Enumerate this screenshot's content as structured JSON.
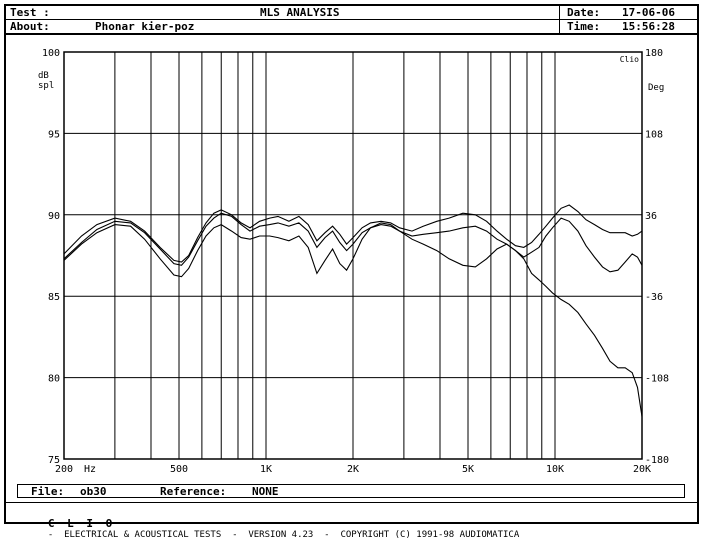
{
  "header": {
    "test_label": "Test :",
    "about_label": "About:",
    "about_value": "Phonar kier-poz",
    "title": "MLS ANALYSIS",
    "date_label": "Date:",
    "date_value": "17-06-06",
    "time_label": "Time:",
    "time_value": "15:56:28"
  },
  "footer": {
    "file_label": "File:",
    "file_value": "ob30",
    "reference_label": "Reference:",
    "reference_value": "NONE",
    "brand": "C L I O",
    "credits": "-  ELECTRICAL & ACOUSTICAL TESTS  -  VERSION 4.23  -  COPYRIGHT (C) 1991-98 AUDIOMATICA"
  },
  "chart_data": {
    "type": "line",
    "title": "MLS ANALYSIS",
    "xscale": "log",
    "xlim": [
      200,
      20000
    ],
    "ylim": [
      75,
      100
    ],
    "y2lim": [
      -180,
      180
    ],
    "ylabel": "dB spl",
    "y2label": "Deg",
    "xunit": "Hz",
    "corner_label": "Clio",
    "grid": true,
    "x_tick_labels": [
      {
        "value": 200,
        "label": "200"
      },
      {
        "value": 500,
        "label": "500"
      },
      {
        "value": 1000,
        "label": "1K"
      },
      {
        "value": 2000,
        "label": "2K"
      },
      {
        "value": 5000,
        "label": "5K"
      },
      {
        "value": 10000,
        "label": "10K"
      },
      {
        "value": 20000,
        "label": "20K"
      }
    ],
    "x_gridlines": [
      200,
      300,
      400,
      500,
      600,
      700,
      800,
      900,
      1000,
      2000,
      3000,
      4000,
      5000,
      6000,
      7000,
      8000,
      9000,
      10000,
      20000
    ],
    "y_ticks": [
      75,
      80,
      85,
      90,
      95,
      100
    ],
    "y2_ticks": [
      -180,
      -108,
      -36,
      36,
      108,
      180
    ],
    "series": [
      {
        "x": [
          200,
          230,
          260,
          300,
          340,
          380,
          430,
          480,
          510,
          540,
          580,
          620,
          660,
          700,
          760,
          820,
          880,
          950,
          1030,
          1100,
          1200,
          1300,
          1400,
          1500,
          1600,
          1700,
          1800,
          1900,
          2000,
          2150,
          2300,
          2500,
          2700,
          2900,
          3200,
          3500,
          3900,
          4300,
          4800,
          5300,
          5800,
          6300,
          6800,
          7300,
          7800,
          8300,
          8800,
          9300,
          9800,
          10500,
          11200,
          12000,
          12800,
          13700,
          14600,
          15500,
          16500,
          17500,
          18500,
          19300,
          20000
        ],
        "y": [
          87.3,
          88.3,
          89.1,
          89.6,
          89.5,
          88.9,
          87.9,
          87.0,
          86.9,
          87.4,
          88.4,
          89.3,
          89.8,
          90.1,
          89.9,
          89.4,
          89.0,
          89.3,
          89.4,
          89.5,
          89.3,
          89.5,
          89.0,
          88.0,
          88.6,
          89.0,
          88.3,
          87.8,
          88.2,
          88.9,
          89.2,
          89.4,
          89.3,
          89.0,
          88.7,
          88.8,
          88.9,
          89.0,
          89.2,
          89.3,
          89.0,
          88.5,
          88.2,
          87.8,
          87.3,
          86.4,
          86.0,
          85.6,
          85.2,
          84.8,
          84.5,
          84.0,
          83.3,
          82.6,
          81.8,
          81.0,
          80.6,
          80.6,
          80.3,
          79.4,
          77.6
        ]
      },
      {
        "x": [
          200,
          230,
          260,
          300,
          340,
          380,
          430,
          480,
          510,
          540,
          580,
          620,
          660,
          700,
          760,
          820,
          880,
          950,
          1030,
          1100,
          1200,
          1300,
          1400,
          1500,
          1600,
          1700,
          1800,
          1900,
          2000,
          2150,
          2300,
          2500,
          2700,
          2900,
          3200,
          3500,
          3900,
          4300,
          4800,
          5300,
          5800,
          6300,
          6800,
          7300,
          7800,
          8300,
          8800,
          9300,
          9800,
          10500,
          11200,
          12000,
          12800,
          13700,
          14600,
          15500,
          16500,
          17500,
          18500,
          19300,
          20000
        ],
        "y": [
          87.6,
          88.7,
          89.4,
          89.8,
          89.6,
          89.0,
          88.0,
          87.2,
          87.1,
          87.5,
          88.6,
          89.5,
          90.1,
          90.3,
          90.0,
          89.5,
          89.2,
          89.6,
          89.8,
          89.9,
          89.6,
          89.9,
          89.4,
          88.4,
          88.9,
          89.3,
          88.8,
          88.2,
          88.6,
          89.2,
          89.5,
          89.6,
          89.5,
          89.2,
          89.0,
          89.3,
          89.6,
          89.8,
          90.1,
          90.0,
          89.6,
          89.0,
          88.5,
          88.1,
          88.0,
          88.3,
          88.8,
          89.3,
          89.8,
          90.4,
          90.6,
          90.2,
          89.7,
          89.4,
          89.1,
          88.9,
          88.9,
          88.9,
          88.7,
          88.8,
          89.0
        ]
      },
      {
        "x": [
          200,
          230,
          260,
          300,
          340,
          380,
          430,
          480,
          510,
          540,
          580,
          620,
          660,
          700,
          760,
          820,
          880,
          950,
          1030,
          1100,
          1200,
          1300,
          1400,
          1500,
          1600,
          1700,
          1800,
          1900,
          2000,
          2150,
          2300,
          2500,
          2700,
          2900,
          3200,
          3500,
          3900,
          4300,
          4800,
          5300,
          5800,
          6300,
          6800,
          7300,
          7800,
          8300,
          8800,
          9300,
          9800,
          10500,
          11200,
          12000,
          12800,
          13700,
          14600,
          15500,
          16500,
          17500,
          18500,
          19300,
          20000
        ],
        "y": [
          87.2,
          88.2,
          88.9,
          89.4,
          89.3,
          88.5,
          87.3,
          86.3,
          86.2,
          86.7,
          87.8,
          88.7,
          89.2,
          89.4,
          89.0,
          88.6,
          88.5,
          88.7,
          88.7,
          88.6,
          88.4,
          88.7,
          88.0,
          86.4,
          87.2,
          87.9,
          87.0,
          86.6,
          87.3,
          88.5,
          89.2,
          89.5,
          89.4,
          89.0,
          88.5,
          88.2,
          87.8,
          87.3,
          86.9,
          86.8,
          87.3,
          87.9,
          88.2,
          87.8,
          87.4,
          87.7,
          88.0,
          88.7,
          89.2,
          89.8,
          89.6,
          89.0,
          88.1,
          87.4,
          86.8,
          86.5,
          86.6,
          87.1,
          87.6,
          87.4,
          86.9
        ]
      }
    ]
  }
}
